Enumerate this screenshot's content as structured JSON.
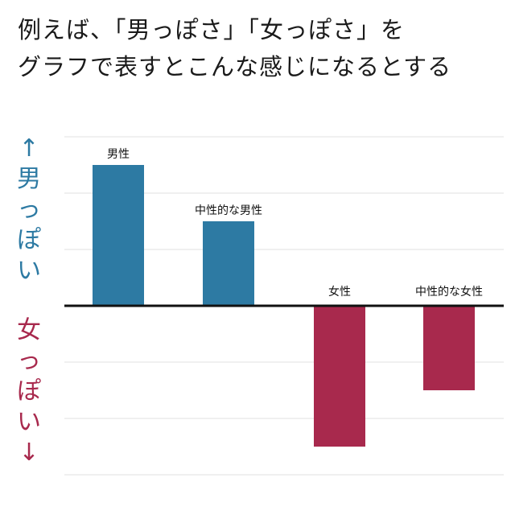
{
  "heading": {
    "line1": "例えば、「男っぽさ」「女っぽさ」を",
    "line2": "グラフで表すとこんな感じになるとする"
  },
  "axis": {
    "up_arrow": "↑",
    "up_text": [
      "男",
      "っ",
      "ぽ",
      "い"
    ],
    "down_text": [
      "女",
      "っ",
      "ぽ",
      "い"
    ],
    "down_arrow": "↓"
  },
  "colors": {
    "male": "#2d7aa3",
    "female": "#a8294d",
    "grid": "#e2e2e2",
    "baseline": "#111111"
  },
  "chart_data": {
    "type": "bar",
    "categories": [
      "男性",
      "中性的な男性",
      "女性",
      "中性的な女性"
    ],
    "values": [
      2.5,
      1.5,
      -2.5,
      -1.5
    ],
    "ylim": [
      -3,
      3
    ],
    "grid": true,
    "bar_labels_above": true
  }
}
